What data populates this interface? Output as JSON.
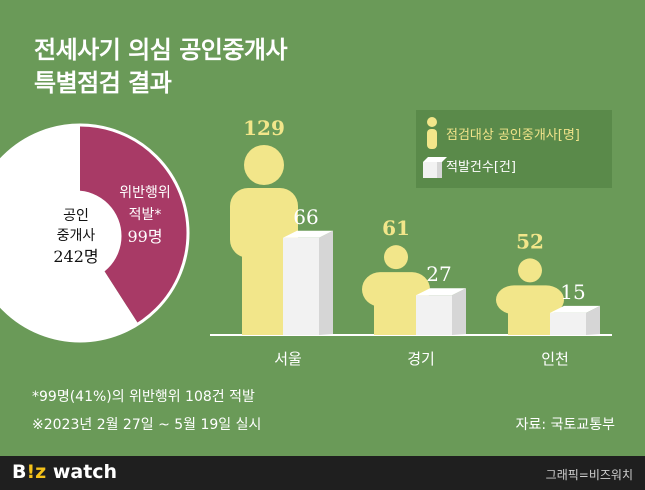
{
  "title": {
    "line1": "전세사기 의심 공인중개사",
    "line2": "특별점검 결과"
  },
  "legend": {
    "items": [
      "점검대상 공인중개사[명]",
      "적발건수[건]"
    ]
  },
  "pie": {
    "total_label_line1": "공인",
    "total_label_line2": "중개사",
    "total_label_line3": "242명",
    "slice_label_line1": "위반행위",
    "slice_label_line2": "적발*",
    "slice_label_line3": "99명"
  },
  "notes": {
    "note1": "*99명(41%)의 위반행위 108건 적발",
    "note2": "※2023년 2월 27일 ~ 5월 19일 실시",
    "source": "자료: 국토교통부"
  },
  "footer": {
    "logo_left": "B",
    "logo_z": "!z",
    "logo_right": " watch",
    "credit": "그래픽=비즈워치"
  },
  "colors": {
    "background": "#6a9a58",
    "person": "#f2e68a",
    "box_front": "#f2f2f2",
    "box_side": "#d6d6d6",
    "pie_slice": "#a83a66",
    "pie_rest": "#ffffff"
  },
  "chart_data": [
    {
      "type": "bar",
      "categories": [
        "서울",
        "경기",
        "인천"
      ],
      "series": [
        {
          "name": "점검대상 공인중개사[명]",
          "values": [
            129,
            61,
            52
          ]
        },
        {
          "name": "적발건수[건]",
          "values": [
            66,
            27,
            15
          ]
        }
      ],
      "legend": "top-right",
      "grid": false
    },
    {
      "type": "pie",
      "total": 242,
      "slices": [
        {
          "label": "위반행위 적발*",
          "value": 99
        },
        {
          "label": "",
          "value": 143
        }
      ]
    }
  ]
}
